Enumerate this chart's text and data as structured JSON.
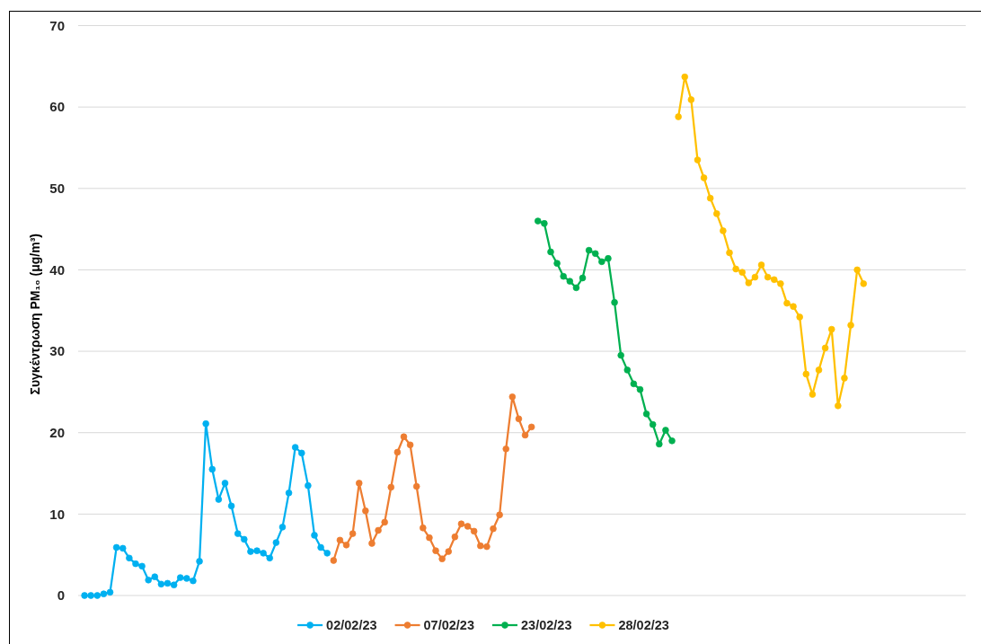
{
  "chart_data": {
    "type": "line",
    "ylabel": "Συγκέντρωση  PM₁₀ (μg/m³)",
    "categories": [
      null,
      null,
      null,
      null,
      null,
      null,
      null,
      null,
      null,
      null,
      null,
      null,
      null,
      null,
      null,
      null,
      null,
      null,
      null,
      null,
      null,
      null,
      null,
      null,
      null,
      null,
      null,
      null,
      null,
      null,
      null,
      null,
      null,
      null,
      null,
      null,
      null,
      null,
      null,
      null,
      null,
      null,
      null,
      null,
      null,
      null,
      null,
      null,
      null,
      null,
      null,
      null,
      null,
      null,
      null,
      null,
      null,
      null,
      null,
      null,
      null,
      null,
      null,
      null,
      null,
      null,
      null,
      null,
      null,
      null,
      null,
      null,
      null,
      null,
      null,
      null,
      null,
      null,
      null,
      null,
      null,
      null,
      null,
      null,
      null,
      null,
      null,
      null,
      null,
      null,
      null,
      null,
      null,
      null,
      null,
      null,
      null,
      null,
      null,
      null,
      null,
      null,
      null,
      null,
      null,
      null,
      null,
      null,
      null,
      null,
      null,
      null,
      null,
      null,
      null,
      null,
      null,
      null,
      null,
      null,
      null,
      null,
      null,
      null,
      null,
      null,
      null,
      null,
      null,
      null,
      null,
      null,
      null,
      null,
      null,
      null,
      null,
      null,
      null,
      null
    ],
    "series": [
      {
        "name": "02/02/23",
        "color": "#00b0f0",
        "values": [
          null,
          0,
          0,
          0,
          0.2,
          0.4,
          5.9,
          5.8,
          4.6,
          3.9,
          3.6,
          1.9,
          2.3,
          1.4,
          1.5,
          1.3,
          2.2,
          2.1,
          1.8,
          4.2,
          21.1,
          15.5,
          11.8,
          13.8,
          11.0,
          7.6,
          6.9,
          5.4,
          5.5,
          5.2,
          4.6,
          6.5,
          8.4,
          12.6,
          18.2,
          17.5,
          13.5,
          7.4,
          5.9,
          5.2,
          null,
          null,
          null,
          null,
          null,
          null,
          null,
          null,
          null,
          null,
          null,
          null,
          null,
          null,
          null,
          null,
          null,
          null,
          null,
          null,
          null,
          null,
          null,
          null,
          null,
          null,
          null,
          null,
          null,
          null,
          null,
          null,
          null,
          null,
          null,
          null,
          null,
          null,
          null,
          null,
          null,
          null,
          null,
          null,
          null,
          null,
          null,
          null,
          null,
          null,
          null,
          null,
          null,
          null,
          null,
          null,
          null,
          null,
          null,
          null,
          null,
          null,
          null,
          null,
          null,
          null,
          null,
          null,
          null,
          null,
          null,
          null,
          null,
          null,
          null,
          null,
          null,
          null,
          null,
          null,
          null,
          null,
          null,
          null,
          null,
          null,
          null,
          null,
          null,
          null,
          null,
          null,
          null,
          null,
          null,
          null,
          null,
          null,
          null,
          null
        ]
      },
      {
        "name": "07/02/23",
        "color": "#ed7d31",
        "values": [
          null,
          null,
          null,
          null,
          null,
          null,
          null,
          null,
          null,
          null,
          null,
          null,
          null,
          null,
          null,
          null,
          null,
          null,
          null,
          null,
          null,
          null,
          null,
          null,
          null,
          null,
          null,
          null,
          null,
          null,
          null,
          null,
          null,
          null,
          null,
          null,
          null,
          null,
          null,
          null,
          4.3,
          6.8,
          6.2,
          7.6,
          13.8,
          10.4,
          6.4,
          8.0,
          9.0,
          13.3,
          17.6,
          19.5,
          18.5,
          13.4,
          8.3,
          7.1,
          5.5,
          4.5,
          5.4,
          7.2,
          8.8,
          8.5,
          7.9,
          6.1,
          6.0,
          8.2,
          9.9,
          18.0,
          24.4,
          21.7,
          19.7,
          20.7,
          null,
          null,
          null,
          null,
          null,
          null,
          null,
          null,
          null,
          null,
          null,
          null,
          null,
          null,
          null,
          null,
          null,
          null,
          null,
          null,
          null,
          null,
          null,
          null,
          null,
          null,
          null,
          null,
          null,
          null,
          null,
          null,
          null,
          null,
          null,
          null,
          null,
          null,
          null,
          null,
          null,
          null,
          null,
          null,
          null,
          null,
          null,
          null,
          null,
          null,
          null,
          null,
          null,
          null,
          null,
          null,
          null,
          null,
          null,
          null,
          null,
          null,
          null,
          null,
          null,
          null,
          null,
          null
        ]
      },
      {
        "name": "23/02/23",
        "color": "#00b050",
        "values": [
          null,
          null,
          null,
          null,
          null,
          null,
          null,
          null,
          null,
          null,
          null,
          null,
          null,
          null,
          null,
          null,
          null,
          null,
          null,
          null,
          null,
          null,
          null,
          null,
          null,
          null,
          null,
          null,
          null,
          null,
          null,
          null,
          null,
          null,
          null,
          null,
          null,
          null,
          null,
          null,
          null,
          null,
          null,
          null,
          null,
          null,
          null,
          null,
          null,
          null,
          null,
          null,
          null,
          null,
          null,
          null,
          null,
          null,
          null,
          null,
          null,
          null,
          null,
          null,
          null,
          null,
          null,
          null,
          null,
          null,
          null,
          null,
          46.0,
          45.7,
          42.2,
          40.8,
          39.2,
          38.6,
          37.8,
          39.0,
          42.4,
          42.0,
          41.0,
          41.4,
          36.0,
          29.5,
          27.7,
          26.0,
          25.3,
          22.3,
          21.0,
          18.6,
          20.3,
          19.0,
          null,
          null,
          null,
          null,
          null,
          null,
          null,
          null,
          null,
          null,
          null,
          null,
          null,
          null,
          null,
          null,
          null,
          null,
          null,
          null,
          null,
          null,
          null,
          null,
          null,
          null,
          null,
          null,
          null,
          null,
          null,
          null,
          null,
          null,
          null,
          null,
          null,
          null,
          null,
          null,
          null,
          null,
          null,
          null,
          null,
          null
        ]
      },
      {
        "name": "28/02/23",
        "color": "#ffc000",
        "values": [
          null,
          null,
          null,
          null,
          null,
          null,
          null,
          null,
          null,
          null,
          null,
          null,
          null,
          null,
          null,
          null,
          null,
          null,
          null,
          null,
          null,
          null,
          null,
          null,
          null,
          null,
          null,
          null,
          null,
          null,
          null,
          null,
          null,
          null,
          null,
          null,
          null,
          null,
          null,
          null,
          null,
          null,
          null,
          null,
          null,
          null,
          null,
          null,
          null,
          null,
          null,
          null,
          null,
          null,
          null,
          null,
          null,
          null,
          null,
          null,
          null,
          null,
          null,
          null,
          null,
          null,
          null,
          null,
          null,
          null,
          null,
          null,
          null,
          null,
          null,
          null,
          null,
          null,
          null,
          null,
          null,
          null,
          null,
          null,
          null,
          null,
          null,
          null,
          null,
          null,
          null,
          null,
          null,
          null,
          58.8,
          63.7,
          60.9,
          53.5,
          51.3,
          48.8,
          46.9,
          44.8,
          42.1,
          40.1,
          39.7,
          38.4,
          39.1,
          40.6,
          39.1,
          38.8,
          38.3,
          35.9,
          35.5,
          34.2,
          27.2,
          24.7,
          27.7,
          30.4,
          32.7,
          23.3,
          26.7,
          33.2,
          40.0,
          38.3,
          null,
          null,
          null,
          null,
          null,
          null,
          null,
          null,
          null,
          null,
          null,
          null,
          null,
          null,
          null,
          null
        ]
      }
    ],
    "ylim": [
      0,
      70
    ],
    "yticks": [
      0,
      10,
      20,
      30,
      40,
      50,
      60,
      70
    ],
    "grid": "y",
    "legend": "bottom",
    "marker": "circle",
    "tick_labels": "y"
  }
}
